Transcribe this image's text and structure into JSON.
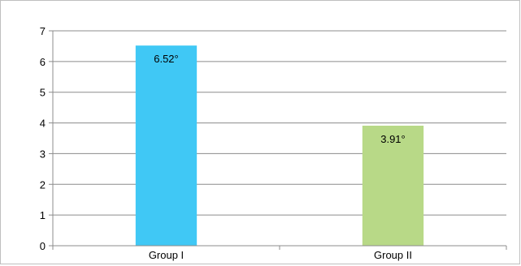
{
  "chart_data": {
    "type": "bar",
    "title": "",
    "xlabel": "",
    "ylabel": "",
    "categories": [
      "Group I",
      "Group II"
    ],
    "values": [
      6.52,
      3.91
    ],
    "data_labels": [
      "6.52°",
      "3.91°"
    ],
    "colors": [
      "#40c8f5",
      "#b8d987"
    ],
    "ylim": [
      0,
      7
    ],
    "yticks": [
      0,
      1,
      2,
      3,
      4,
      5,
      6,
      7
    ],
    "grid": true,
    "legend": "none"
  }
}
